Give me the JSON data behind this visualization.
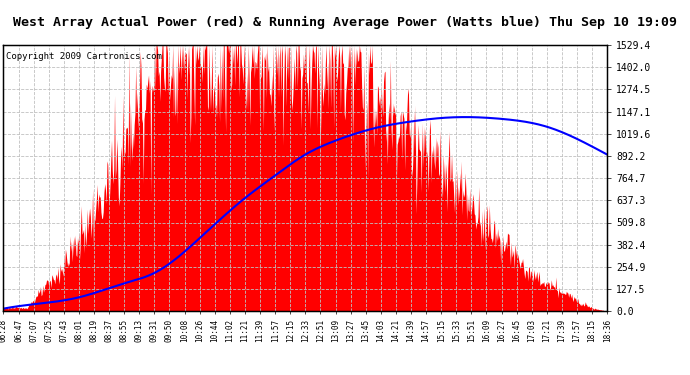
{
  "title": "West Array Actual Power (red) & Running Average Power (Watts blue) Thu Sep 10 19:09",
  "copyright": "Copyright 2009 Cartronics.com",
  "ymax": 1529.4,
  "yticks": [
    0.0,
    127.5,
    254.9,
    382.4,
    509.8,
    637.3,
    764.7,
    892.2,
    1019.6,
    1147.1,
    1274.5,
    1402.0,
    1529.4
  ],
  "fill_color": "#ff0000",
  "avg_color": "#0000ff",
  "bg_color": "#ffffff",
  "grid_color": "#c0c0c0",
  "title_fontsize": 9.5,
  "copyright_fontsize": 6.5,
  "xtick_labels": [
    "06:28",
    "06:47",
    "07:07",
    "07:25",
    "07:43",
    "08:01",
    "08:19",
    "08:37",
    "08:55",
    "09:13",
    "09:31",
    "09:50",
    "10:08",
    "10:26",
    "10:44",
    "11:02",
    "11:21",
    "11:39",
    "11:57",
    "12:15",
    "12:33",
    "12:51",
    "13:09",
    "13:27",
    "13:45",
    "14:03",
    "14:21",
    "14:39",
    "14:57",
    "15:15",
    "15:33",
    "15:51",
    "16:09",
    "16:27",
    "16:45",
    "17:03",
    "17:21",
    "17:39",
    "17:57",
    "18:15",
    "18:36"
  ]
}
